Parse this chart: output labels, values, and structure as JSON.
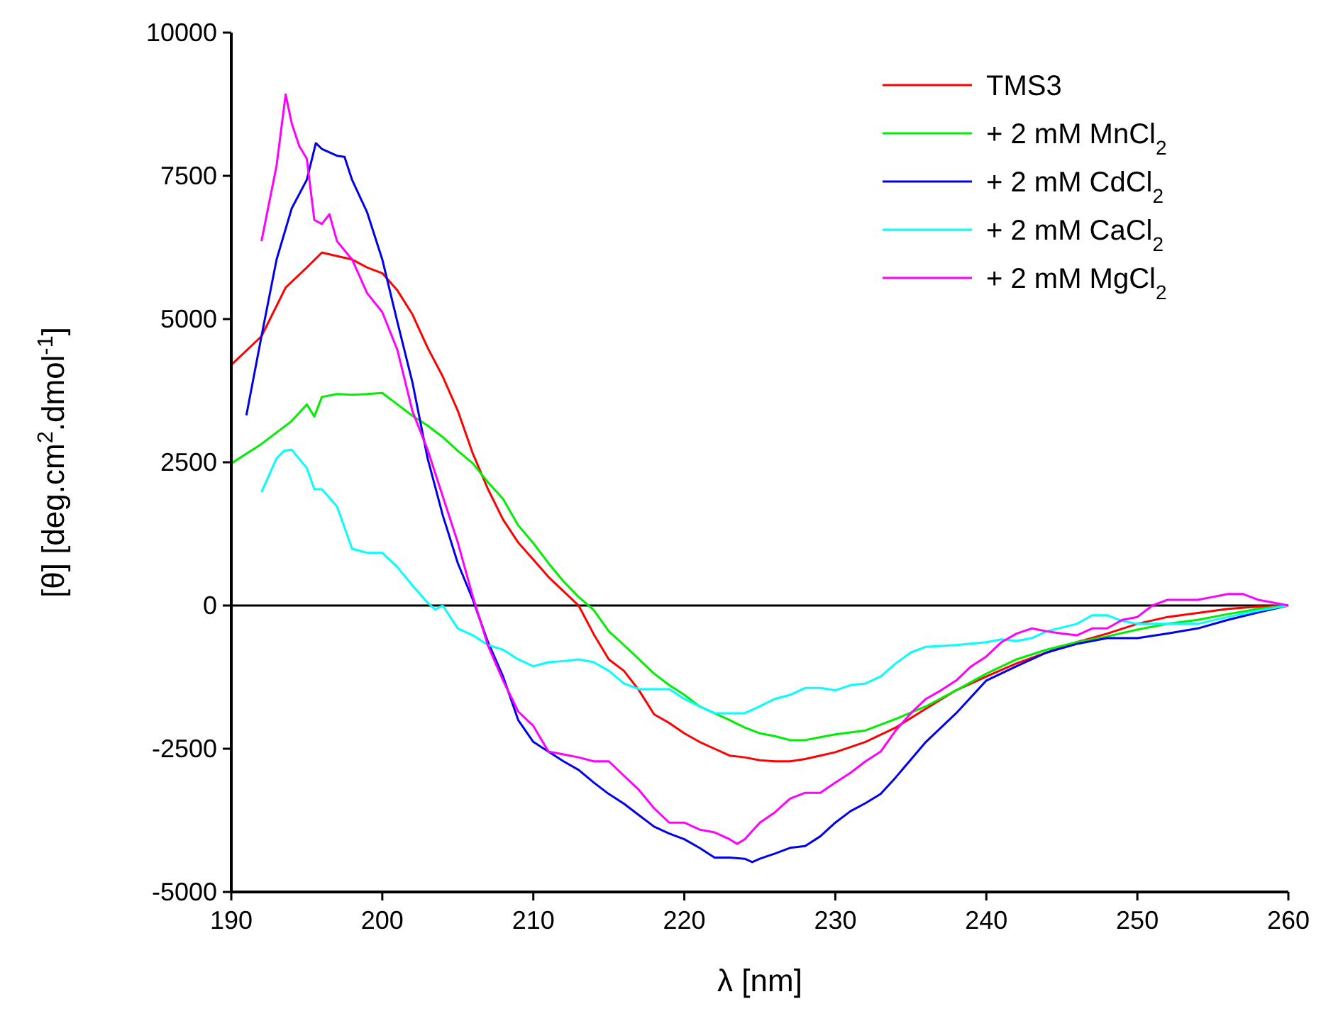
{
  "chart_data": {
    "type": "line",
    "xlabel": "λ [nm]",
    "ylabel": "[θ] [deg.cm$^{2}$.dmol$^{-1}$]",
    "xlim": [
      190,
      260
    ],
    "xticks": [
      190,
      200,
      210,
      220,
      230,
      240,
      250,
      260
    ],
    "ylim": [
      -5000,
      10000
    ],
    "yticks": [
      -5000,
      -2500,
      0,
      2500,
      5000,
      7500,
      10000
    ],
    "grid": false,
    "legend": "top right",
    "marker": "none",
    "line_style": "solid",
    "ref_lines": [
      {
        "axis": "y",
        "value": 0,
        "color": "#000000"
      }
    ],
    "series": [
      {
        "name": "TMS3",
        "color": "#ff0000",
        "x": [
          190,
          192,
          193.6,
          195,
          196,
          198,
          199,
          200,
          201,
          202,
          203,
          204,
          205,
          206,
          207,
          208,
          209,
          210,
          211,
          212,
          213,
          214,
          215,
          216,
          217,
          218,
          219,
          220,
          221,
          222,
          223,
          224,
          225,
          226,
          227,
          228,
          229,
          230,
          232,
          234,
          236,
          238,
          240,
          242,
          244,
          246,
          248,
          250,
          252,
          254,
          256,
          258,
          260
        ],
        "values": [
          4200,
          4700,
          5550,
          5900,
          6160,
          6040,
          5900,
          5800,
          5500,
          5080,
          4500,
          4000,
          3400,
          2650,
          2030,
          1500,
          1100,
          800,
          500,
          250,
          0,
          -500,
          -940,
          -1140,
          -1480,
          -1900,
          -2050,
          -2230,
          -2380,
          -2500,
          -2620,
          -2650,
          -2700,
          -2720,
          -2720,
          -2680,
          -2620,
          -2560,
          -2380,
          -2130,
          -1800,
          -1480,
          -1240,
          -1010,
          -820,
          -640,
          -490,
          -320,
          -200,
          -130,
          -60,
          -20,
          0
        ]
      },
      {
        "name": "+ 2 mM MnCl$_{2}$",
        "color": "#00ee00",
        "x": [
          190,
          192,
          194,
          195,
          195.5,
          196,
          197,
          198,
          199,
          200,
          201,
          202,
          203,
          204,
          205,
          206,
          207,
          208,
          209,
          210,
          211,
          212,
          213,
          214,
          215,
          216,
          217,
          218,
          219,
          220,
          221,
          222,
          223,
          224,
          225,
          226,
          227,
          228,
          229,
          230,
          232,
          234,
          236,
          238,
          240,
          242,
          244,
          246,
          248,
          250,
          252,
          254,
          256,
          258,
          260
        ],
        "values": [
          2480,
          2820,
          3220,
          3510,
          3300,
          3640,
          3690,
          3680,
          3690,
          3710,
          3510,
          3310,
          3140,
          2940,
          2700,
          2480,
          2150,
          1860,
          1400,
          1090,
          740,
          420,
          150,
          -80,
          -450,
          -690,
          -940,
          -1190,
          -1390,
          -1560,
          -1760,
          -1880,
          -2000,
          -2130,
          -2230,
          -2280,
          -2350,
          -2350,
          -2300,
          -2250,
          -2180,
          -1980,
          -1760,
          -1480,
          -1190,
          -940,
          -770,
          -640,
          -540,
          -420,
          -320,
          -250,
          -150,
          -60,
          0
        ]
      },
      {
        "name": "+ 2 mM CdCl$_{2}$",
        "color": "#0000ee",
        "x": [
          191,
          192,
          193,
          194,
          195,
          195.6,
          196,
          197,
          197.5,
          198,
          199,
          200,
          201,
          202,
          203,
          204,
          205,
          206,
          207,
          208,
          209,
          210,
          211,
          212,
          213,
          214,
          215,
          216,
          217,
          218,
          219,
          220,
          221,
          222,
          223,
          224,
          224.5,
          225,
          226,
          227,
          228,
          229,
          230,
          231,
          232,
          233,
          234,
          236,
          238,
          240,
          242,
          244,
          246,
          248,
          250,
          252,
          254,
          256,
          258,
          260
        ],
        "values": [
          3320,
          4700,
          6040,
          6930,
          7430,
          8070,
          7970,
          7850,
          7830,
          7430,
          6860,
          6040,
          4950,
          3890,
          2570,
          1580,
          740,
          100,
          -640,
          -1240,
          -2000,
          -2380,
          -2550,
          -2720,
          -2870,
          -3090,
          -3290,
          -3460,
          -3660,
          -3860,
          -3980,
          -4080,
          -4230,
          -4400,
          -4400,
          -4420,
          -4480,
          -4420,
          -4330,
          -4230,
          -4200,
          -4030,
          -3790,
          -3590,
          -3450,
          -3290,
          -3000,
          -2380,
          -1880,
          -1310,
          -1060,
          -820,
          -670,
          -570,
          -570,
          -490,
          -400,
          -250,
          -120,
          0
        ]
      },
      {
        "name": "+ 2 mM CaCl$_{2}$",
        "color": "#00ffff",
        "x": [
          192,
          193,
          193.5,
          194,
          195,
          195.5,
          196,
          197,
          198,
          199,
          200,
          201,
          202,
          203,
          203.5,
          204,
          205,
          206,
          207,
          208,
          209,
          210,
          211,
          212,
          213,
          214,
          215,
          216,
          217,
          218,
          219,
          220,
          221,
          222,
          223,
          224,
          225,
          226,
          227,
          228,
          229,
          230,
          231,
          232,
          233,
          234,
          235,
          236,
          238,
          240,
          241,
          242,
          243,
          244,
          246,
          247,
          248,
          249,
          250,
          252,
          254,
          256,
          258,
          260
        ],
        "values": [
          1980,
          2570,
          2700,
          2720,
          2400,
          2030,
          2030,
          1730,
          990,
          920,
          920,
          670,
          350,
          50,
          -70,
          0,
          -400,
          -520,
          -690,
          -770,
          -940,
          -1060,
          -990,
          -970,
          -940,
          -990,
          -1140,
          -1360,
          -1460,
          -1460,
          -1460,
          -1630,
          -1760,
          -1880,
          -1880,
          -1880,
          -1760,
          -1630,
          -1560,
          -1440,
          -1440,
          -1480,
          -1390,
          -1360,
          -1240,
          -1010,
          -820,
          -720,
          -690,
          -640,
          -590,
          -620,
          -570,
          -450,
          -320,
          -170,
          -170,
          -270,
          -320,
          -320,
          -320,
          -200,
          -90,
          0
        ]
      },
      {
        "name": "+ 2 mM MgCl$_{2}$",
        "color": "#ff00ff",
        "x": [
          192,
          193,
          193.6,
          194,
          194.5,
          195,
          195.5,
          196,
          196.5,
          197,
          198,
          199,
          200,
          201,
          202,
          203,
          204,
          205,
          206,
          207,
          208,
          209,
          210,
          211,
          212,
          213,
          214,
          215,
          216,
          217,
          218,
          219,
          220,
          221,
          222,
          223,
          223.5,
          224,
          225,
          226,
          227,
          228,
          229,
          230,
          231,
          232,
          233,
          234,
          235,
          236,
          237,
          238,
          239,
          240,
          241,
          242,
          243,
          244,
          245,
          246,
          247,
          248,
          249,
          250,
          251,
          252,
          253,
          254,
          255,
          256,
          257,
          258,
          260
        ],
        "values": [
          6360,
          7680,
          8920,
          8420,
          8020,
          7800,
          6730,
          6660,
          6830,
          6360,
          6040,
          5450,
          5120,
          4460,
          3390,
          2720,
          1910,
          1100,
          150,
          -700,
          -1310,
          -1850,
          -2100,
          -2550,
          -2600,
          -2650,
          -2720,
          -2720,
          -2970,
          -3220,
          -3540,
          -3790,
          -3790,
          -3910,
          -3960,
          -4080,
          -4160,
          -4080,
          -3790,
          -3610,
          -3370,
          -3270,
          -3270,
          -3090,
          -2920,
          -2720,
          -2550,
          -2180,
          -1880,
          -1630,
          -1480,
          -1310,
          -1060,
          -890,
          -640,
          -490,
          -400,
          -450,
          -490,
          -520,
          -400,
          -400,
          -250,
          -200,
          0,
          100,
          100,
          100,
          150,
          200,
          200,
          100,
          0
        ]
      }
    ]
  }
}
